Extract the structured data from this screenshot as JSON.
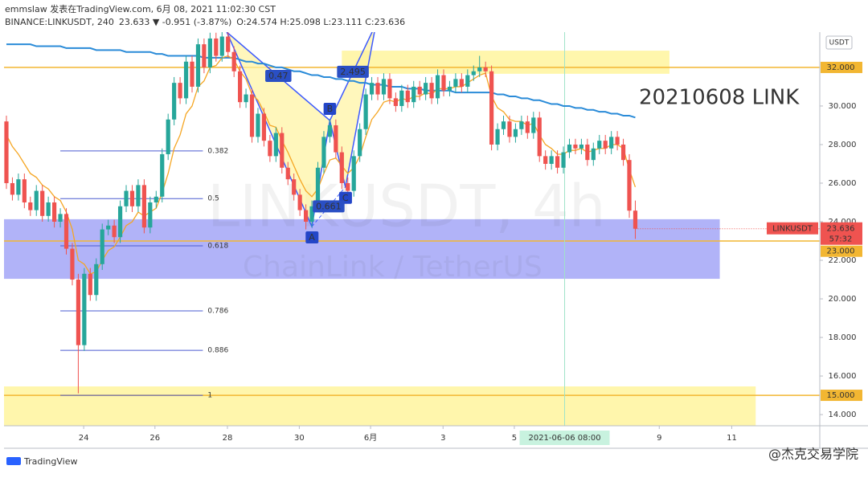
{
  "chart_data": {
    "type": "candlestick",
    "header": {
      "publisher": "emmslaw 发表在TradingView.com, 6月 08, 2021 11:02:30 CST",
      "symbol": "BINANCE:LINKUSDT, 240",
      "quote": "23.633 ▼ -0.951 (-3.87%)",
      "ohlc": "O:24.574 H:25.098 L:23.111 C:23.636"
    },
    "annotation": "20210608 LINK",
    "watermark": "LINKUSDT, 4h",
    "watermark_sub": "ChainLink / TetherUS",
    "currency": "USDT",
    "footer_logo": "TradingView",
    "footer_credit": "@杰克交易学院",
    "up_color": "#26a69a",
    "down_color": "#ef5350",
    "xlim": [
      -0.4,
      135.8
    ],
    "xticks": [
      {
        "value": 12.9,
        "label": "24"
      },
      {
        "value": 24.8,
        "label": "26"
      },
      {
        "value": 36.9,
        "label": "28"
      },
      {
        "value": 48.9,
        "label": "30"
      },
      {
        "value": 60.8,
        "label": "6月"
      },
      {
        "value": 72.9,
        "label": "3"
      },
      {
        "value": 84.8,
        "label": "5"
      },
      {
        "value": 109.0,
        "label": "9"
      },
      {
        "value": 121.1,
        "label": "11"
      }
    ],
    "ylim": [
      13.42,
      33.83
    ],
    "yticks": [
      {
        "value": 14,
        "label": "14.000"
      },
      {
        "value": 16,
        "label": "16.000"
      },
      {
        "value": 18,
        "label": "18.000"
      },
      {
        "value": 20,
        "label": "20.000"
      },
      {
        "value": 22,
        "label": "22.000"
      },
      {
        "value": 24,
        "label": "24.000"
      },
      {
        "value": 26,
        "label": "26.000"
      },
      {
        "value": 28,
        "label": "28.000"
      },
      {
        "value": 30,
        "label": "30.000"
      }
    ],
    "open": [
      29.2,
      26.0,
      25.4,
      26.2,
      25.0,
      24.6,
      25.6,
      24.3,
      25.0,
      24.0,
      24.4,
      22.6,
      21.0,
      17.6,
      21.3,
      20.2,
      21.8,
      23.6,
      23.8,
      23.2,
      24.8,
      25.6,
      24.8,
      25.9,
      23.7,
      25.0,
      25.3,
      27.5,
      29.3,
      31.2,
      30.4,
      32.3,
      31.0,
      33.2,
      32.0,
      33.5,
      32.6,
      33.6,
      32.8,
      31.8,
      30.2,
      30.6,
      28.4,
      29.6,
      28.2,
      27.4,
      28.6,
      26.8,
      26.2,
      25.4,
      24.6,
      24.0,
      24.8,
      26.8,
      28.4,
      29.0,
      27.6,
      26.0,
      25.6,
      27.4,
      28.8,
      30.6,
      31.2,
      30.6,
      31.4,
      30.4,
      30.0,
      30.8,
      30.2,
      31.0,
      30.6,
      31.2,
      30.4,
      31.6,
      30.8,
      31.0,
      31.4,
      31.0,
      31.6,
      31.8,
      32.0,
      31.8,
      28.0,
      28.8,
      29.2,
      28.4,
      28.8,
      29.2,
      28.6,
      29.4,
      27.4,
      27.0,
      27.4,
      26.8,
      27.6,
      28.0,
      27.8,
      28.0,
      27.2,
      27.8,
      28.2,
      27.8,
      28.4,
      28.0,
      27.2,
      24.574
    ],
    "high": [
      29.5,
      26.3,
      26.5,
      26.5,
      25.3,
      25.9,
      25.9,
      25.3,
      25.3,
      24.7,
      24.7,
      22.9,
      21.3,
      21.6,
      21.6,
      22.1,
      23.9,
      24.1,
      24.1,
      25.1,
      25.9,
      25.9,
      26.2,
      26.2,
      25.3,
      25.6,
      27.8,
      29.6,
      31.5,
      31.5,
      32.6,
      32.6,
      33.5,
      33.5,
      33.8,
      33.8,
      33.9,
      33.9,
      33.1,
      32.1,
      30.9,
      30.9,
      29.9,
      29.9,
      28.5,
      28.9,
      28.9,
      27.1,
      26.5,
      25.7,
      24.9,
      25.1,
      27.1,
      28.7,
      29.3,
      29.3,
      27.9,
      26.3,
      27.7,
      29.1,
      30.9,
      31.5,
      31.5,
      31.7,
      31.7,
      30.7,
      31.1,
      31.1,
      31.3,
      31.3,
      31.5,
      31.5,
      31.9,
      31.9,
      31.3,
      31.7,
      31.7,
      31.9,
      32.1,
      32.6,
      32.3,
      32.1,
      29.1,
      29.5,
      29.5,
      29.1,
      29.5,
      29.5,
      29.7,
      29.7,
      27.7,
      27.7,
      27.7,
      27.9,
      28.3,
      28.3,
      28.3,
      28.3,
      28.1,
      28.5,
      28.5,
      28.7,
      28.7,
      28.3,
      27.5,
      25.098
    ],
    "low": [
      25.7,
      25.1,
      25.1,
      24.7,
      24.3,
      24.3,
      24.0,
      24.0,
      23.7,
      23.7,
      22.3,
      20.7,
      15.1,
      17.3,
      19.9,
      19.9,
      21.5,
      23.3,
      22.9,
      22.9,
      24.5,
      24.5,
      24.5,
      23.4,
      23.4,
      24.7,
      25.0,
      27.2,
      29.0,
      30.1,
      30.1,
      30.7,
      30.7,
      31.7,
      31.7,
      32.3,
      32.3,
      32.5,
      31.5,
      29.9,
      29.9,
      28.1,
      28.1,
      27.9,
      27.1,
      27.1,
      26.5,
      25.9,
      25.1,
      24.3,
      23.6,
      23.7,
      24.5,
      26.5,
      28.1,
      27.3,
      25.7,
      25.3,
      25.3,
      27.1,
      28.5,
      30.3,
      30.3,
      30.3,
      30.1,
      29.7,
      29.7,
      29.9,
      29.9,
      30.3,
      30.3,
      30.1,
      30.1,
      30.5,
      30.5,
      30.7,
      30.7,
      30.7,
      31.3,
      31.5,
      31.5,
      27.7,
      27.7,
      28.5,
      28.1,
      28.1,
      28.5,
      28.3,
      28.3,
      27.1,
      26.7,
      26.7,
      26.5,
      26.5,
      27.3,
      27.5,
      27.5,
      26.9,
      26.9,
      27.5,
      27.5,
      27.5,
      27.7,
      26.9,
      24.2,
      23.111
    ],
    "close": [
      26.0,
      25.4,
      26.2,
      25.0,
      24.6,
      25.6,
      24.3,
      25.0,
      24.0,
      24.4,
      22.6,
      21.0,
      17.6,
      21.3,
      20.2,
      21.8,
      23.6,
      23.8,
      23.2,
      24.8,
      25.6,
      24.8,
      25.9,
      23.7,
      25.0,
      25.3,
      27.5,
      29.3,
      31.2,
      30.4,
      32.3,
      31.0,
      33.2,
      32.0,
      33.5,
      32.6,
      33.6,
      32.8,
      31.8,
      30.2,
      30.6,
      28.4,
      29.6,
      28.2,
      27.4,
      28.6,
      26.8,
      26.2,
      25.4,
      24.6,
      24.0,
      24.8,
      26.8,
      28.4,
      29.0,
      27.6,
      26.0,
      25.6,
      27.4,
      28.8,
      30.6,
      31.2,
      30.6,
      31.4,
      30.4,
      30.0,
      30.8,
      30.2,
      31.0,
      30.6,
      31.2,
      30.4,
      31.6,
      30.8,
      31.0,
      31.4,
      31.0,
      31.6,
      31.8,
      32.0,
      31.8,
      28.0,
      28.8,
      29.2,
      28.4,
      28.8,
      29.2,
      28.6,
      29.4,
      27.4,
      27.0,
      27.4,
      26.8,
      27.6,
      28.0,
      27.8,
      28.0,
      27.2,
      27.8,
      28.2,
      27.8,
      28.4,
      28.0,
      27.2,
      24.574,
      23.636
    ],
    "ma_lines": [
      {
        "color": "#2a8bd8",
        "values": [
          33.2,
          33.2,
          33.2,
          33.2,
          33.2,
          33.1,
          33.1,
          33.1,
          33.1,
          33.1,
          33.0,
          33.0,
          33.0,
          33.0,
          33.0,
          32.9,
          32.9,
          32.9,
          32.9,
          32.9,
          32.8,
          32.8,
          32.8,
          32.8,
          32.8,
          32.7,
          32.7,
          32.6,
          32.6,
          32.6,
          32.6,
          32.6,
          32.6,
          32.5,
          32.5,
          32.5,
          32.5,
          32.5,
          32.5,
          32.4,
          32.3,
          32.3,
          32.2,
          32.2,
          32.1,
          32.0,
          32.0,
          31.9,
          31.8,
          31.8,
          31.7,
          31.6,
          31.6,
          31.5,
          31.5,
          31.4,
          31.4,
          31.3,
          31.3,
          31.2,
          31.2,
          31.1,
          31.1,
          31.1,
          31.0,
          31.0,
          31.0,
          30.9,
          30.9,
          30.9,
          30.8,
          30.8,
          30.8,
          30.8,
          30.8,
          30.7,
          30.7,
          30.7,
          30.7,
          30.7,
          30.7,
          30.7,
          30.6,
          30.6,
          30.5,
          30.5,
          30.4,
          30.4,
          30.3,
          30.3,
          30.2,
          30.1,
          30.1,
          30.0,
          30.0,
          29.9,
          29.9,
          29.8,
          29.8,
          29.7,
          29.7,
          29.6,
          29.6,
          29.5,
          29.5,
          29.4
        ]
      },
      {
        "color": "#f5a623",
        "values": [
          28.5,
          27.9,
          27.5,
          27.0,
          26.5,
          26.3,
          25.9,
          25.7,
          25.3,
          25.1,
          24.5,
          23.6,
          22.0,
          21.8,
          21.3,
          21.4,
          22.0,
          22.5,
          22.7,
          23.2,
          23.8,
          24.0,
          24.5,
          24.3,
          24.5,
          24.7,
          25.5,
          26.5,
          27.8,
          28.5,
          29.6,
          30.0,
          31.0,
          31.3,
          32.0,
          32.1,
          32.5,
          32.6,
          32.4,
          31.8,
          31.4,
          30.6,
          30.3,
          29.7,
          29.0,
          28.9,
          28.2,
          27.6,
          26.9,
          26.2,
          25.6,
          25.3,
          25.7,
          26.5,
          27.2,
          27.3,
          26.9,
          26.5,
          26.8,
          27.4,
          28.4,
          29.3,
          29.7,
          30.2,
          30.3,
          30.2,
          30.4,
          30.3,
          30.5,
          30.5,
          30.7,
          30.6,
          30.9,
          30.9,
          30.9,
          31.0,
          31.0,
          31.2,
          31.4,
          31.6,
          31.7,
          30.5,
          29.9,
          29.7,
          29.3,
          29.2,
          29.2,
          29.0,
          29.1,
          28.5,
          28.0,
          27.8,
          27.5,
          27.5,
          27.7,
          27.7,
          27.8,
          27.6,
          27.7,
          27.8,
          27.8,
          28.0,
          28.0,
          27.8,
          26.7,
          25.8
        ]
      }
    ],
    "zones": [
      {
        "x": [
          56.0,
          110.7
        ],
        "y": [
          31.67,
          32.87
        ],
        "color": "#fff59d"
      },
      {
        "x": [
          -0.4,
          119.1
        ],
        "y": [
          21.04,
          24.13
        ],
        "color": "#a3a6f7"
      },
      {
        "x": [
          -0.4,
          125.1
        ],
        "y": [
          13.42,
          15.46
        ],
        "color": "#fff59d"
      }
    ],
    "levels": [
      {
        "value": 32,
        "label": "32.000"
      },
      {
        "value": 23,
        "label": "23.000"
      },
      {
        "value": 15,
        "label": "15.000"
      }
    ],
    "level_color": "#f2b632",
    "fib_x": [
      9.0,
      32.8
    ],
    "fib_color": "#4a5bd0",
    "fib_levels": [
      {
        "ratio": 0.382,
        "price": 27.67
      },
      {
        "ratio": 0.5,
        "price": 25.2
      },
      {
        "ratio": 0.618,
        "price": 22.75
      },
      {
        "ratio": 0.786,
        "price": 19.375
      },
      {
        "ratio": 0.886,
        "price": 17.33
      },
      {
        "ratio": 1,
        "price": 15.0
      }
    ],
    "pattern": {
      "x": [
        36.8,
        51.0,
        54.0,
        56.6,
        61.7
      ],
      "y": [
        33.83,
        23.75,
        29.25,
        25.8,
        34.25
      ],
      "labels": [
        "A",
        "B",
        "C"
      ],
      "ratios": [
        0.47,
        0.661,
        2.495
      ]
    },
    "price_label": {
      "name": "LINKUSDT",
      "countdown": "57:32"
    },
    "crosshair": {
      "x": 93.2,
      "label": "2021-06-06  08:00"
    }
  }
}
